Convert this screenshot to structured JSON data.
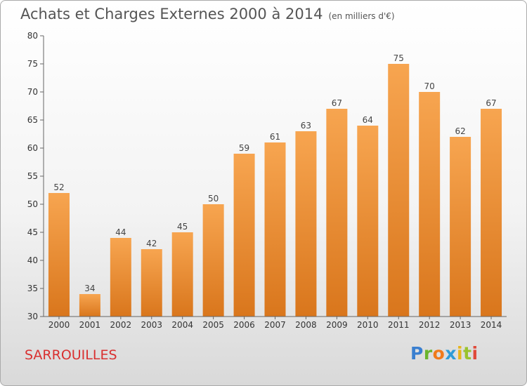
{
  "title": "Achats et Charges Externes 2000 à 2014",
  "unit": "(en milliers d'€)",
  "commune": "SARROUILLES",
  "logo": {
    "letters": [
      {
        "ch": "P",
        "color": "#3a7fd0"
      },
      {
        "ch": "r",
        "color": "#6ab42d"
      },
      {
        "ch": "o",
        "color": "#f07a1a"
      },
      {
        "ch": "x",
        "color": "#2e9bd6"
      },
      {
        "ch": "i",
        "color": "#e8b51a"
      },
      {
        "ch": "t",
        "color": "#9ac32d"
      },
      {
        "ch": "i",
        "color": "#e04a3a"
      }
    ]
  },
  "chart_data": {
    "type": "bar",
    "title": "Achats et Charges Externes 2000 à 2014",
    "categories": [
      "2000",
      "2001",
      "2002",
      "2003",
      "2004",
      "2005",
      "2006",
      "2007",
      "2008",
      "2009",
      "2010",
      "2011",
      "2012",
      "2013",
      "2014"
    ],
    "values": [
      52,
      34,
      44,
      42,
      45,
      50,
      59,
      61,
      63,
      67,
      64,
      75,
      70,
      62,
      67
    ],
    "ylim": [
      30,
      80
    ],
    "yticks": [
      30,
      35,
      40,
      45,
      50,
      55,
      60,
      65,
      70,
      75,
      80
    ],
    "grid": false,
    "bar_color_top": "#f7a550",
    "bar_color_bottom": "#d9761c"
  }
}
